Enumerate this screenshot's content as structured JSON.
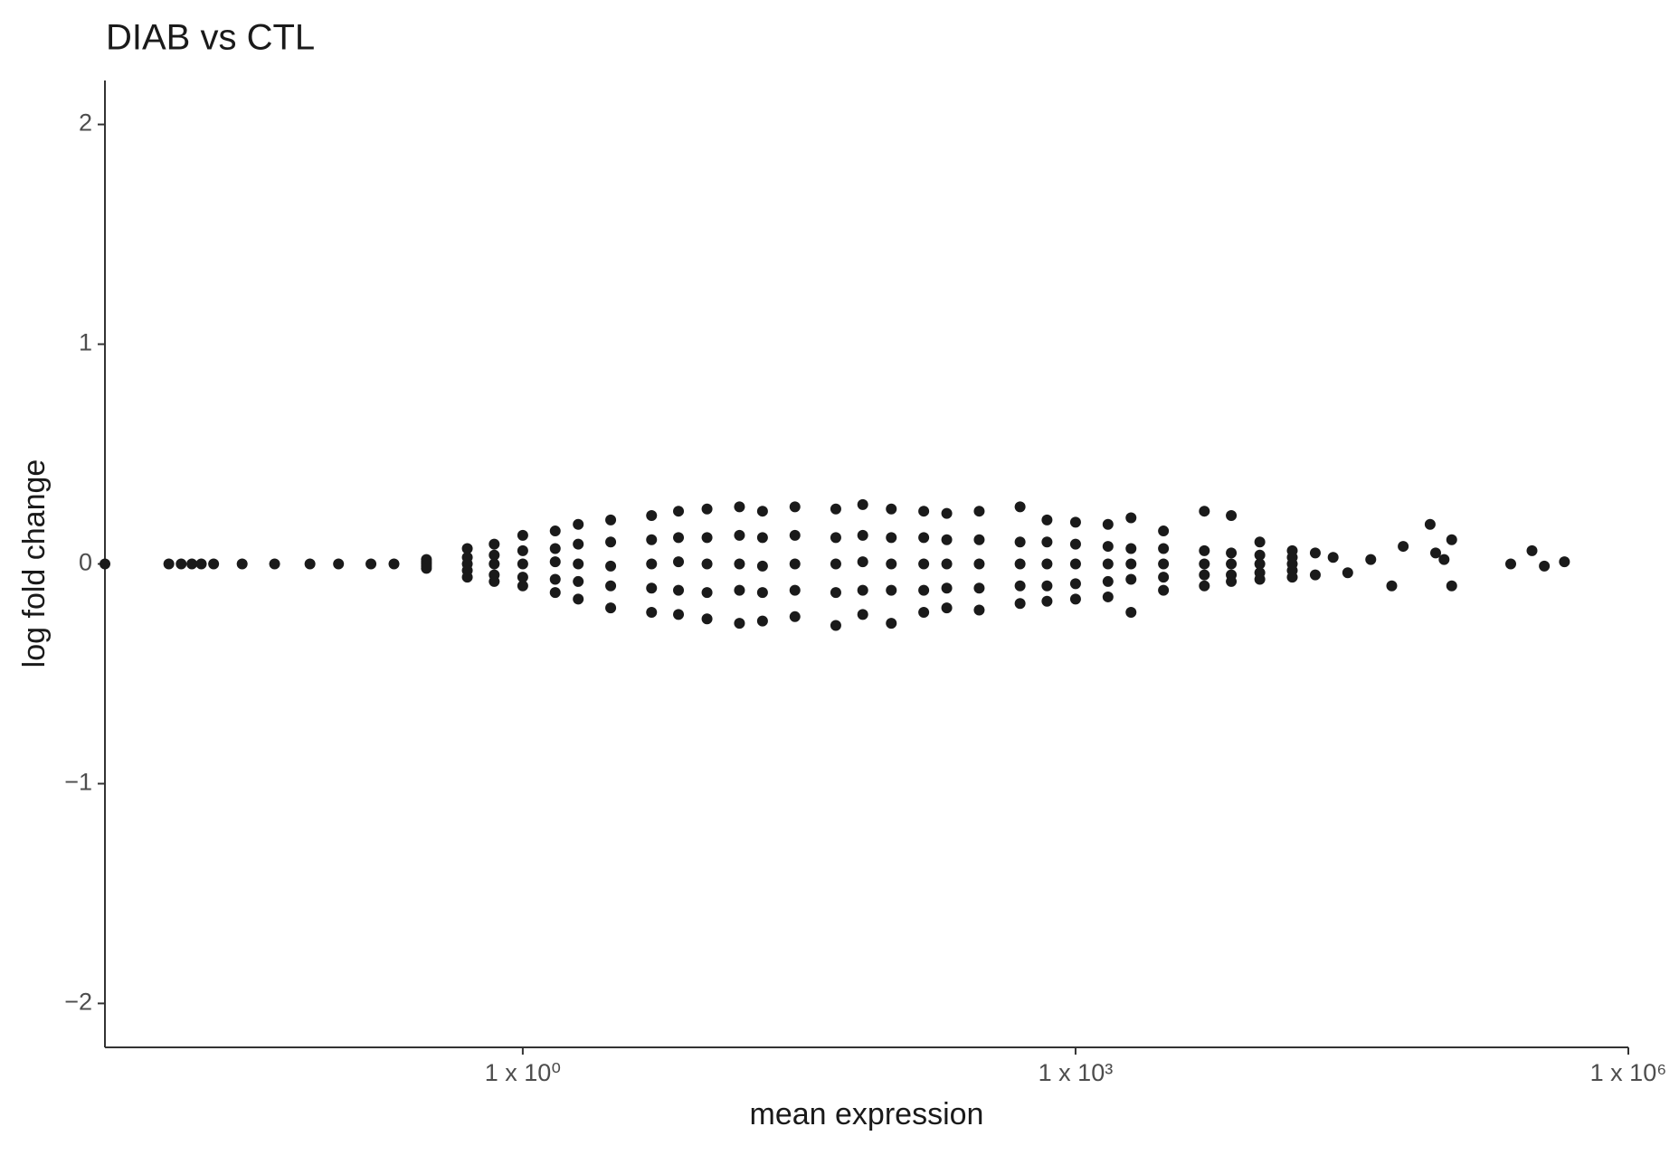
{
  "chart_data": {
    "type": "scatter",
    "title": "DIAB vs CTL",
    "x_label": "mean expression",
    "y_label": "log fold change",
    "xscale": "log",
    "color": "#1a1a1a",
    "grid": false,
    "xlim": [
      0.0054,
      1000000
    ],
    "ylim": [
      -2.2,
      2.2
    ],
    "xticks": [
      {
        "value": 1,
        "label": "1 x 10⁰"
      },
      {
        "value": 1000,
        "label": "1 x 10³"
      },
      {
        "value": 1000000,
        "label": "1 x 10⁶"
      }
    ],
    "yticks": [
      {
        "value": -2,
        "label": "−2"
      },
      {
        "value": -1,
        "label": "−1"
      },
      0,
      1,
      2
    ],
    "x": [
      0.3,
      0.3,
      0.3,
      0.3,
      0.3,
      0.5,
      0.5,
      0.5,
      0.5,
      0.5,
      0.7,
      0.7,
      0.7,
      0.7,
      0.7,
      1,
      1,
      1,
      1,
      1,
      1.5,
      1.5,
      1.5,
      1.5,
      1.5,
      2,
      2,
      2,
      2,
      2,
      3,
      3,
      3,
      3,
      3,
      5,
      5,
      5,
      5,
      5,
      7,
      7,
      7,
      7,
      7,
      10,
      10,
      10,
      10,
      10,
      15,
      15,
      15,
      15,
      15,
      20,
      20,
      20,
      20,
      20,
      30,
      30,
      30,
      30,
      30,
      50,
      50,
      50,
      50,
      50,
      70,
      70,
      70,
      70,
      70,
      100,
      100,
      100,
      100,
      100,
      150,
      150,
      150,
      150,
      150,
      200,
      200,
      200,
      200,
      200,
      300,
      300,
      300,
      300,
      300,
      500,
      500,
      500,
      500,
      500,
      700,
      700,
      700,
      700,
      700,
      1000,
      1000,
      1000,
      1000,
      1000,
      1500,
      1500,
      1500,
      1500,
      1500,
      2000,
      2000,
      2000,
      2000,
      2000,
      3000,
      3000,
      3000,
      3000,
      3000,
      5000,
      5000,
      5000,
      5000,
      5000,
      7000,
      7000,
      7000,
      7000,
      7000,
      10000,
      10000,
      10000,
      10000,
      10000,
      15000,
      15000,
      15000,
      15000,
      15000,
      0.0054,
      0.012,
      0.014,
      0.016,
      0.018,
      0.021,
      0.03,
      0.045,
      0.07,
      0.1,
      0.15,
      0.2,
      20000,
      20000,
      25000,
      30000,
      40000,
      52000,
      60000,
      84000,
      90000,
      110000,
      110000,
      100000,
      230000,
      300000,
      350000,
      450000
    ],
    "y": [
      0.02,
      0.01,
      0,
      -0.01,
      -0.02,
      0.07,
      0.03,
      0,
      -0.03,
      -0.06,
      0.09,
      0.04,
      0,
      -0.05,
      -0.08,
      0.13,
      0.06,
      0,
      -0.06,
      -0.1,
      0.15,
      0.07,
      0.01,
      -0.07,
      -0.13,
      0.18,
      0.09,
      0,
      -0.08,
      -0.16,
      0.2,
      0.1,
      -0.01,
      -0.1,
      -0.2,
      0.22,
      0.11,
      0,
      -0.11,
      -0.22,
      0.24,
      0.12,
      0.01,
      -0.12,
      -0.23,
      0.25,
      0.12,
      0,
      -0.13,
      -0.25,
      0.26,
      0.13,
      0,
      -0.12,
      -0.27,
      0.24,
      0.12,
      -0.01,
      -0.13,
      -0.26,
      0.26,
      0.13,
      0,
      -0.12,
      -0.24,
      0.25,
      0.12,
      0,
      -0.13,
      -0.28,
      0.27,
      0.13,
      0.01,
      -0.12,
      -0.23,
      0.25,
      0.12,
      0,
      -0.12,
      -0.27,
      0.24,
      0.12,
      0,
      -0.12,
      -0.22,
      0.23,
      0.11,
      0,
      -0.11,
      -0.2,
      0.24,
      0.11,
      0,
      -0.11,
      -0.21,
      0.26,
      0.1,
      0,
      -0.1,
      -0.18,
      0.2,
      0.1,
      0,
      -0.1,
      -0.17,
      0.19,
      0.09,
      0,
      -0.09,
      -0.16,
      0.18,
      0.08,
      0,
      -0.08,
      -0.15,
      0.21,
      0.07,
      0,
      -0.07,
      -0.22,
      0.15,
      0.07,
      0,
      -0.06,
      -0.12,
      0.24,
      0.06,
      0,
      -0.05,
      -0.1,
      0.22,
      0.05,
      0,
      -0.05,
      -0.08,
      0.1,
      0.04,
      0,
      -0.04,
      -0.07,
      0.06,
      0.03,
      0,
      -0.03,
      -0.06,
      0,
      0,
      0,
      0,
      0,
      0,
      0,
      0,
      0,
      0,
      0,
      0,
      0.05,
      -0.05,
      0.03,
      -0.04,
      0.02,
      -0.1,
      0.08,
      0.18,
      0.05,
      0.11,
      -0.1,
      0.02,
      0,
      0.06,
      -0.01,
      0.01
    ]
  }
}
